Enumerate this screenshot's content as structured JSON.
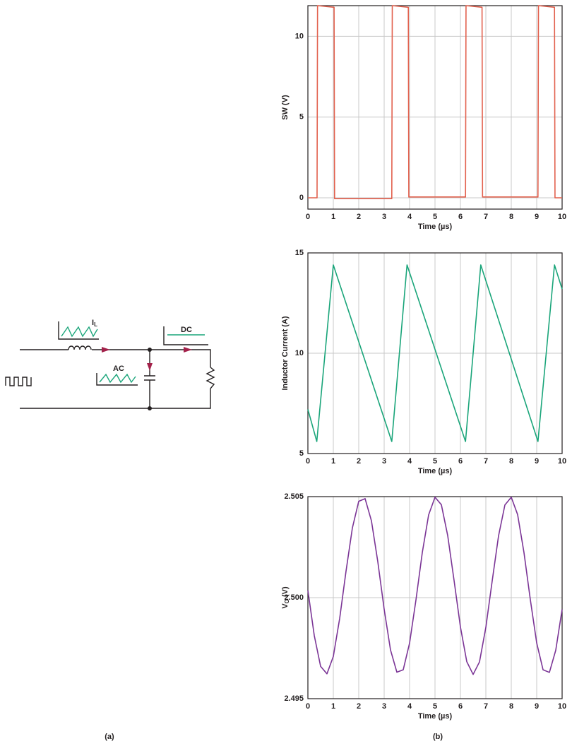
{
  "chart_data": [
    {
      "type": "line",
      "ylabel": "SW (V)",
      "xlabel": "Time (µs)",
      "xlim": [
        0,
        10
      ],
      "xticks": [
        0,
        1,
        2,
        3,
        4,
        5,
        6,
        7,
        8,
        9,
        10
      ],
      "ylim": [
        -0.7,
        11.9
      ],
      "yticks": [
        0,
        5,
        10
      ],
      "grid": true,
      "series": [
        {
          "color": "#e2604d",
          "x": [
            0,
            0.36,
            0.38,
            1.03,
            1.05,
            3.3,
            3.32,
            3.95,
            3.97,
            6.2,
            6.22,
            6.85,
            6.87,
            9.05,
            9.07,
            9.7,
            9.72,
            10
          ],
          "values": [
            0,
            0,
            11.9,
            11.8,
            -0.05,
            -0.05,
            11.9,
            11.8,
            0.05,
            0.05,
            11.9,
            11.8,
            0.05,
            0.05,
            11.9,
            11.8,
            0,
            0
          ]
        }
      ]
    },
    {
      "type": "line",
      "ylabel": "Inductor Current (A)",
      "xlabel": "Time (µs)",
      "xlim": [
        0,
        10
      ],
      "xticks": [
        0,
        1,
        2,
        3,
        4,
        5,
        6,
        7,
        8,
        9,
        10
      ],
      "ylim": [
        5,
        15
      ],
      "yticks": [
        5,
        10,
        15
      ],
      "grid": true,
      "series": [
        {
          "color": "#1aa57a",
          "x": [
            0,
            0.35,
            1.0,
            3.3,
            3.9,
            6.2,
            6.8,
            9.05,
            9.7,
            10
          ],
          "values": [
            7.2,
            5.6,
            14.4,
            5.6,
            14.4,
            5.6,
            14.4,
            5.6,
            14.4,
            13.2
          ]
        }
      ]
    },
    {
      "type": "line",
      "ylabel": "V",
      "ylabel_subscript": "O",
      "ylabel_suffix": " (V)",
      "xlabel": "Time (µs)",
      "xlim": [
        0,
        10
      ],
      "xticks": [
        0,
        1,
        2,
        3,
        4,
        5,
        6,
        7,
        8,
        9,
        10
      ],
      "ylim": [
        2.495,
        2.505
      ],
      "yticks": [
        2.495,
        {
          "value": 2.5,
          "label": "2.500"
        },
        2.505
      ],
      "grid": true,
      "series": [
        {
          "color": "#7b3596",
          "x": [
            0,
            0.25,
            0.5,
            0.75,
            1,
            1.25,
            1.5,
            1.75,
            2,
            2.25,
            2.5,
            2.75,
            3,
            3.25,
            3.5,
            3.75,
            4,
            4.25,
            4.5,
            4.75,
            5,
            5.25,
            5.5,
            5.75,
            6,
            6.25,
            6.5,
            6.75,
            7,
            7.25,
            7.5,
            7.75,
            8,
            8.25,
            8.5,
            8.75,
            9,
            9.25,
            9.5,
            9.75,
            10
          ],
          "values": [
            2.50036,
            2.49813,
            2.4966,
            2.49623,
            2.49709,
            2.49897,
            2.50131,
            2.50345,
            2.50477,
            2.5049,
            2.5038,
            2.50178,
            2.49943,
            2.49741,
            2.49631,
            2.49643,
            2.49775,
            2.49988,
            2.50223,
            2.5041,
            2.50497,
            2.5046,
            2.50307,
            2.50085,
            2.49855,
            2.49683,
            2.4962,
            2.49682,
            2.49853,
            2.50083,
            2.50306,
            2.50459,
            2.50497,
            2.50411,
            2.50223,
            2.4999,
            2.49776,
            2.49643,
            2.4963,
            2.4974,
            2.49942
          ]
        }
      ]
    }
  ],
  "diagram": {
    "current_label": "I",
    "current_subscript": "L",
    "dc_label": "DC",
    "ac_label": "AC"
  },
  "captions": [
    "(a)",
    "(b)"
  ]
}
